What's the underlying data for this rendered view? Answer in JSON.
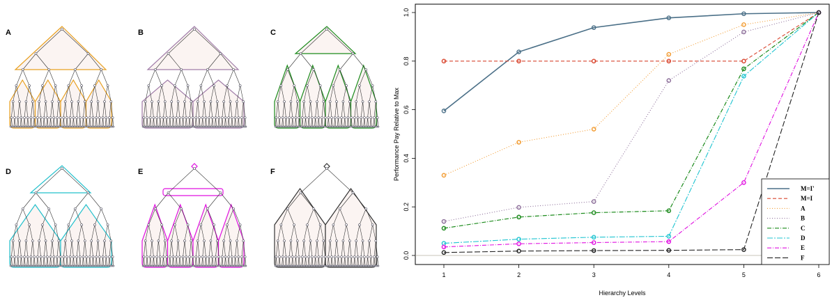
{
  "panels": [
    {
      "label": "A",
      "color": "#e8a020",
      "scheme": "A"
    },
    {
      "label": "B",
      "color": "#a07ca8",
      "scheme": "B"
    },
    {
      "label": "C",
      "color": "#1a8a1a",
      "scheme": "C"
    },
    {
      "label": "D",
      "color": "#22c0cc",
      "scheme": "D"
    },
    {
      "label": "E",
      "color": "#e010e0",
      "scheme": "E"
    },
    {
      "label": "F",
      "color": "#333333",
      "scheme": "F"
    }
  ],
  "chart_data": {
    "type": "line",
    "xlabel": "Hierarchy Levels",
    "ylabel": "Performance Pay Relative to Max",
    "x": [
      1,
      2,
      3,
      4,
      5,
      6
    ],
    "xlim": [
      1,
      6
    ],
    "ylim": [
      0,
      1
    ],
    "xticks": [
      "1",
      "2",
      "3",
      "4",
      "5",
      "6"
    ],
    "yticks": [
      "0.0",
      "0.2",
      "0.4",
      "0.6",
      "0.8",
      "1.0"
    ],
    "legend_position": "bottom-right",
    "series": [
      {
        "name": "M=I'",
        "color": "#4a6f87",
        "dash": "",
        "width": 1.6,
        "values": [
          0.595,
          0.838,
          0.938,
          0.978,
          0.995,
          1.0
        ]
      },
      {
        "name": "M=I",
        "color": "#d9452e",
        "dash": "5,3",
        "width": 1.1,
        "values": [
          0.8,
          0.8,
          0.8,
          0.8,
          0.8,
          1.0
        ]
      },
      {
        "name": "A",
        "color": "#f29a2e",
        "dash": "1,2.5",
        "width": 1.1,
        "values": [
          0.33,
          0.466,
          0.52,
          0.828,
          0.95,
          1.0
        ]
      },
      {
        "name": "B",
        "color": "#8c6e99",
        "dash": "1,2.5",
        "width": 1.1,
        "values": [
          0.14,
          0.198,
          0.222,
          0.72,
          0.92,
          1.0
        ]
      },
      {
        "name": "C",
        "color": "#1a8a1a",
        "dash": "6,2,1,2",
        "width": 1.2,
        "values": [
          0.112,
          0.158,
          0.176,
          0.184,
          0.768,
          1.0
        ]
      },
      {
        "name": "D",
        "color": "#1fc4d1",
        "dash": "8,2,2,2",
        "width": 1.1,
        "values": [
          0.05,
          0.067,
          0.075,
          0.079,
          0.738,
          1.0
        ]
      },
      {
        "name": "E",
        "color": "#e010e0",
        "dash": "6,2,1,2",
        "width": 1.1,
        "values": [
          0.035,
          0.048,
          0.053,
          0.057,
          0.3,
          1.0
        ]
      },
      {
        "name": "F",
        "color": "#222222",
        "dash": "8,3",
        "width": 1.1,
        "values": [
          0.012,
          0.018,
          0.02,
          0.021,
          0.024,
          1.0
        ]
      }
    ]
  }
}
